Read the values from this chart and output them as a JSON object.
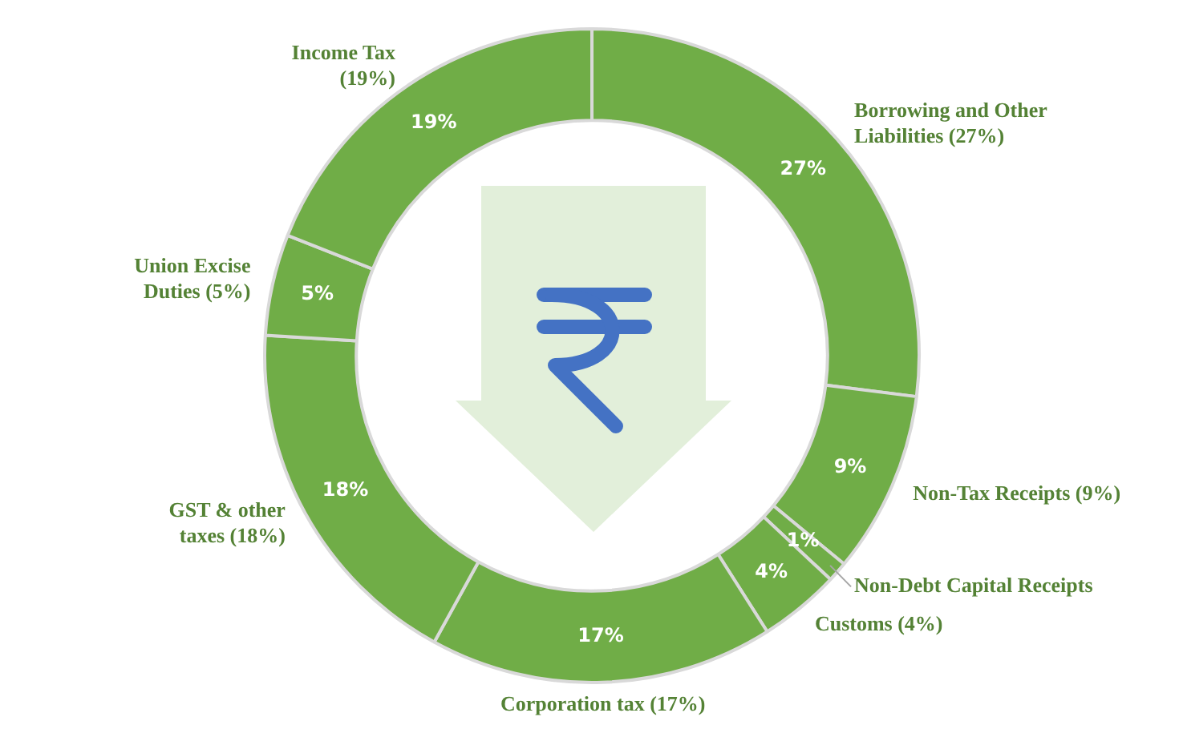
{
  "chart_data": {
    "type": "donut",
    "categories": [
      "Borrowing and Other Liabilities (27%)",
      "Non-Tax Receipts (9%)",
      "Non-Debt Capital Receipts",
      "Customs (4%)",
      "Corporation tax (17%)",
      "GST & other taxes (18%)",
      "Union Excise Duties (5%)",
      "Income Tax (19%)"
    ],
    "values": [
      27,
      9,
      1,
      4,
      17,
      18,
      5,
      19
    ],
    "value_labels": [
      "27%",
      "9%",
      "1%",
      "4%",
      "17%",
      "18%",
      "5%",
      "19%"
    ],
    "colors": [
      "#70ad47",
      "#70ad47",
      "#70ad47",
      "#70ad47",
      "#70ad47",
      "#70ad47",
      "#70ad47",
      "#70ad47"
    ]
  }
}
